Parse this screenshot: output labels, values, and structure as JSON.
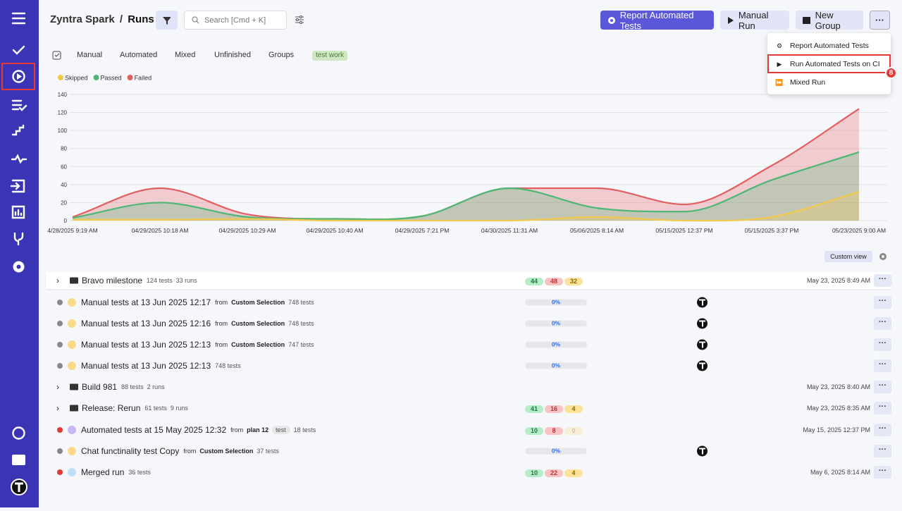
{
  "header": {
    "project": "Zyntra Spark",
    "separator": "/",
    "page": "Runs",
    "search_placeholder": "Search [Cmd + K]",
    "buttons": [
      "Report Automated Tests",
      "Manual Run",
      "New Group"
    ]
  },
  "menu": {
    "items": [
      "Report Automated Tests",
      "Run Automated Tests on CI",
      "Mixed Run"
    ],
    "badge": "8"
  },
  "tabs": [
    "Manual",
    "Automated",
    "Mixed",
    "Unfinished",
    "Groups",
    "test work"
  ],
  "chart_data": {
    "type": "stacked-area",
    "categories": [
      "4/28/2025 9:19 AM",
      "04/29/2025 10:18 AM",
      "04/29/2025 10:29 AM",
      "04/29/2025 10:40 AM",
      "04/29/2025 7:21 PM",
      "04/30/2025 11:31 AM",
      "05/06/2025 8:14 AM",
      "05/15/2025 12:37 PM",
      "05/15/2025 3:37 PM",
      "05/23/2025 9:00 AM"
    ],
    "series": [
      {
        "name": "Skipped",
        "color": "#f2c94c",
        "values": [
          1,
          1,
          2,
          0,
          0,
          0,
          4,
          0,
          4,
          32
        ]
      },
      {
        "name": "Passed",
        "color": "#4db775",
        "values": [
          2,
          19,
          2,
          2,
          5,
          36,
          10,
          10,
          41,
          44
        ]
      },
      {
        "name": "Failed",
        "color": "#e15f61",
        "values": [
          1,
          16,
          3,
          0,
          0,
          0,
          22,
          8,
          16,
          48
        ]
      }
    ],
    "ylim": [
      0,
      140
    ],
    "yticks": [
      0,
      20,
      40,
      60,
      80,
      100,
      120,
      140
    ],
    "grid": true
  },
  "toolbar": {
    "custom_view": "Custom view"
  },
  "runs": [
    {
      "kind": "group",
      "title": "Bravo milestone",
      "tests": "124 tests",
      "runs": "33 runs",
      "badges": [
        "44",
        "48",
        "32"
      ],
      "date": "May 23, 2025 8:49 AM"
    },
    {
      "kind": "run",
      "status": "pending",
      "title": "Manual tests at 13 Jun 2025 12:17",
      "from": "from",
      "source": "Custom Selection",
      "tests": "748 tests",
      "progress": "0%"
    },
    {
      "kind": "run",
      "status": "pending",
      "title": "Manual tests at 13 Jun 2025 12:16",
      "from": "from",
      "source": "Custom Selection",
      "tests": "748 tests",
      "progress": "0%"
    },
    {
      "kind": "run",
      "status": "pending",
      "title": "Manual tests at 13 Jun 2025 12:13",
      "from": "from",
      "source": "Custom Selection",
      "tests": "747 tests",
      "progress": "0%"
    },
    {
      "kind": "run",
      "status": "pending",
      "title": "Manual tests at 13 Jun 2025 12:13",
      "tests": "748 tests",
      "progress": "0%"
    },
    {
      "kind": "group",
      "title": "Build 981",
      "tests": "88 tests",
      "runs": "2 runs",
      "date": "May 23, 2025 8:40 AM"
    },
    {
      "kind": "group",
      "title": "Release: Rerun",
      "tests": "61 tests",
      "runs": "9 runs",
      "badges": [
        "41",
        "16",
        "4"
      ],
      "date": "May 23, 2025 8:35 AM"
    },
    {
      "kind": "run",
      "status": "failed",
      "icon": "automated",
      "title": "Automated tests at 15 May 2025 12:32",
      "from": "from",
      "source": "plan 12",
      "tag": "test",
      "tests": "18 tests",
      "badges": [
        "10",
        "8",
        "0"
      ],
      "date": "May 15, 2025 12:37 PM"
    },
    {
      "kind": "run",
      "status": "pending",
      "title": "Chat functinality test Copy",
      "from": "from",
      "source": "Custom Selection",
      "tests": "37 tests",
      "progress": "0%"
    },
    {
      "kind": "run",
      "status": "failed",
      "icon": "mixed",
      "title": "Merged run",
      "tests": "36 tests",
      "badges": [
        "10",
        "22",
        "4"
      ],
      "date": "May 6, 2025 8:14 AM"
    }
  ]
}
